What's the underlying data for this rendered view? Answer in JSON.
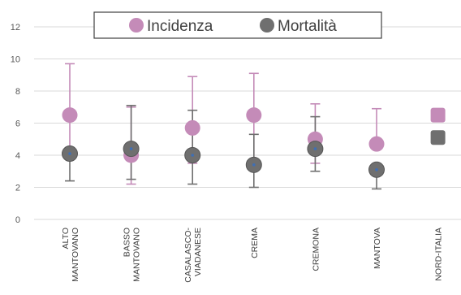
{
  "chart_data": {
    "type": "scatter",
    "categories": [
      [
        "ALTO",
        "MANTOVANO"
      ],
      [
        "BASSO",
        "MANTOVANO"
      ],
      [
        "CASALASCO-",
        "VIADANESE"
      ],
      [
        "CREMA"
      ],
      [
        "CREMONA"
      ],
      [
        "MANTOVA"
      ],
      [
        "NORD-ITALIA"
      ]
    ],
    "ylim": [
      0,
      12
    ],
    "yticks": [
      0,
      2,
      4,
      6,
      8,
      10,
      12
    ],
    "grid": true,
    "legend_position": "top-center",
    "series": [
      {
        "name": "Incidenza",
        "color": "#c48bb8",
        "values": [
          6.5,
          4.0,
          5.7,
          6.5,
          5.0,
          4.7,
          6.5
        ],
        "lower": [
          3.8,
          2.2,
          3.5,
          3.4,
          3.5,
          null,
          null
        ],
        "upper": [
          9.7,
          7.0,
          8.9,
          9.1,
          7.2,
          6.9,
          null
        ]
      },
      {
        "name": "Mortalità",
        "color": "#6f6f6f",
        "values": [
          4.1,
          4.4,
          4.0,
          3.4,
          4.4,
          3.1,
          5.1
        ],
        "lower": [
          2.4,
          2.5,
          2.2,
          2.0,
          3.0,
          1.9,
          null
        ],
        "upper": [
          null,
          7.1,
          6.8,
          5.3,
          6.4,
          null,
          null
        ]
      }
    ]
  }
}
